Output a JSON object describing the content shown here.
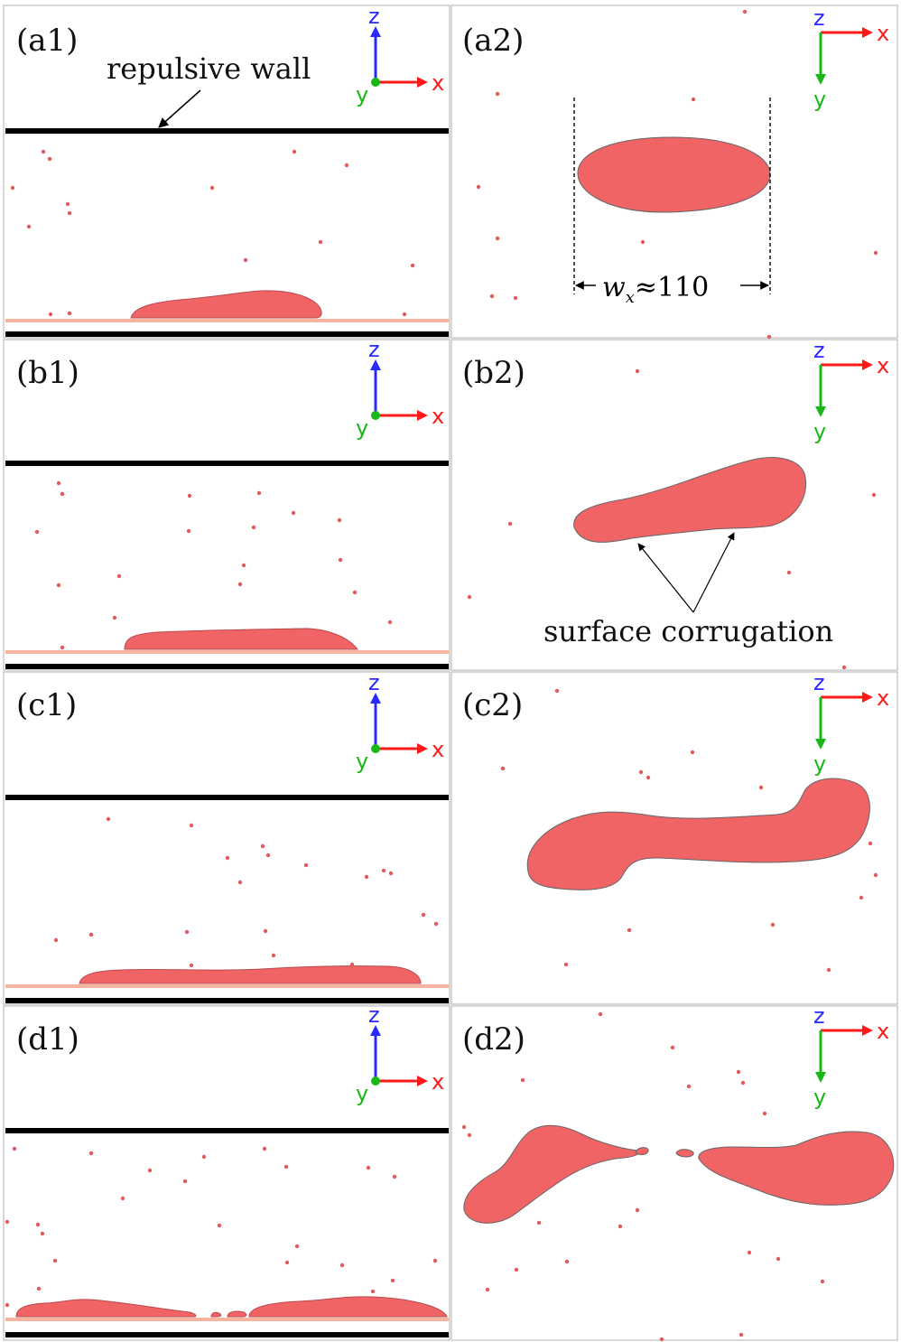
{
  "panels": {
    "a1": "(a1)",
    "a2": "(a2)",
    "b1": "(b1)",
    "b2": "(b2)",
    "c1": "(c1)",
    "c2": "(c2)",
    "d1": "(d1)",
    "d2": "(d2)"
  },
  "annotations": {
    "repulsive_wall": "repulsive wall",
    "width_var": "w",
    "width_sub": "x",
    "width_value": "≈110",
    "surface_corrugation": "surface corrugation"
  },
  "axes": {
    "x": "x",
    "y": "y",
    "z": "z"
  },
  "colors": {
    "droplet": "#f06466",
    "wall": "#000000",
    "substrate": "#f7b49e",
    "x_axis": "#ff1a1a",
    "y_axis": "#18b818",
    "z_axis": "#2a2aff"
  }
}
